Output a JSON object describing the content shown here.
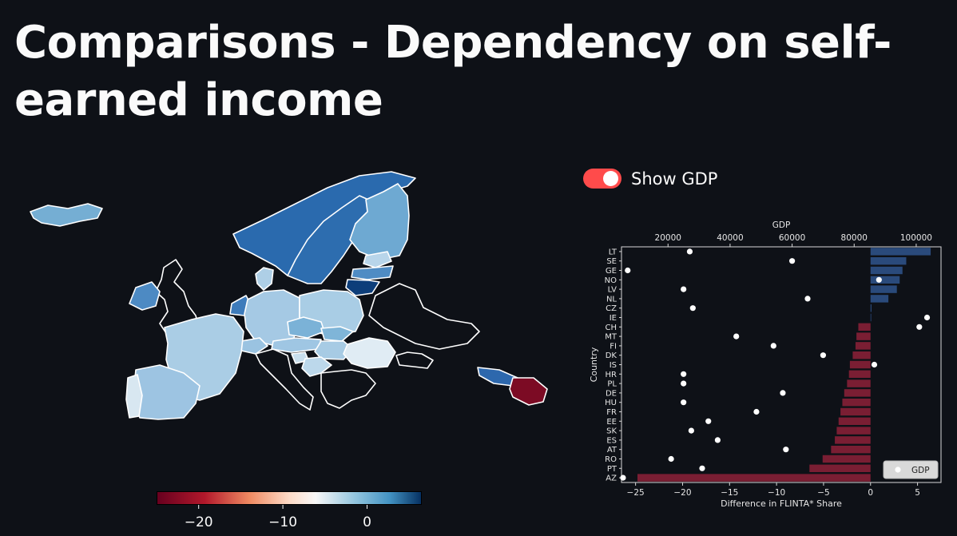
{
  "title": "Comparisons - Dependency on self-earned income",
  "toggle": {
    "label": "Show GDP",
    "state": "on",
    "color": "#ff4b4b"
  },
  "map": {
    "colormap": "RdBu",
    "colorbar_ticks": [
      "−20",
      "−10",
      "0"
    ],
    "colorbar_range": [
      -25,
      6.5
    ]
  },
  "chart_data": {
    "type": "bar",
    "orientation": "horizontal",
    "categories": [
      "LT",
      "SE",
      "GE",
      "NO",
      "LV",
      "NL",
      "CZ",
      "IE",
      "CH",
      "MT",
      "FI",
      "DK",
      "IS",
      "HR",
      "PL",
      "DE",
      "HU",
      "FR",
      "EE",
      "SK",
      "ES",
      "AT",
      "RO",
      "PT",
      "AZ"
    ],
    "values": [
      6.4,
      3.8,
      3.4,
      3.1,
      2.8,
      1.9,
      0.1,
      0.0,
      -1.3,
      -1.5,
      -1.6,
      -1.9,
      -2.2,
      -2.3,
      -2.5,
      -2.8,
      -3.0,
      -3.2,
      -3.4,
      -3.6,
      -3.8,
      -4.2,
      -5.1,
      -6.5,
      -24.8
    ],
    "positive_color": "#2a4a7b",
    "negative_color": "#7a1e33",
    "xlabel": "Difference in FLINTA* Share",
    "ylabel": "Country",
    "xlim": [
      -26.5,
      7.5
    ],
    "xticks": [
      "−25",
      "−20",
      "−15",
      "−10",
      "−5",
      "0",
      "5"
    ],
    "secondary_axis": {
      "label": "GDP",
      "xlim": [
        5000,
        108000
      ],
      "xticks": [
        "20000",
        "40000",
        "60000",
        "80000",
        "100000"
      ],
      "series": {
        "name": "GDP",
        "values": [
          27000,
          60000,
          7000,
          88000,
          25000,
          65000,
          28000,
          103500,
          101000,
          42000,
          54000,
          70000,
          86500,
          25000,
          25000,
          57000,
          25000,
          48500,
          33000,
          27500,
          36000,
          58000,
          21000,
          31000,
          5500
        ]
      }
    },
    "legend": {
      "position": "bottom-right",
      "entries": [
        "GDP"
      ]
    }
  }
}
